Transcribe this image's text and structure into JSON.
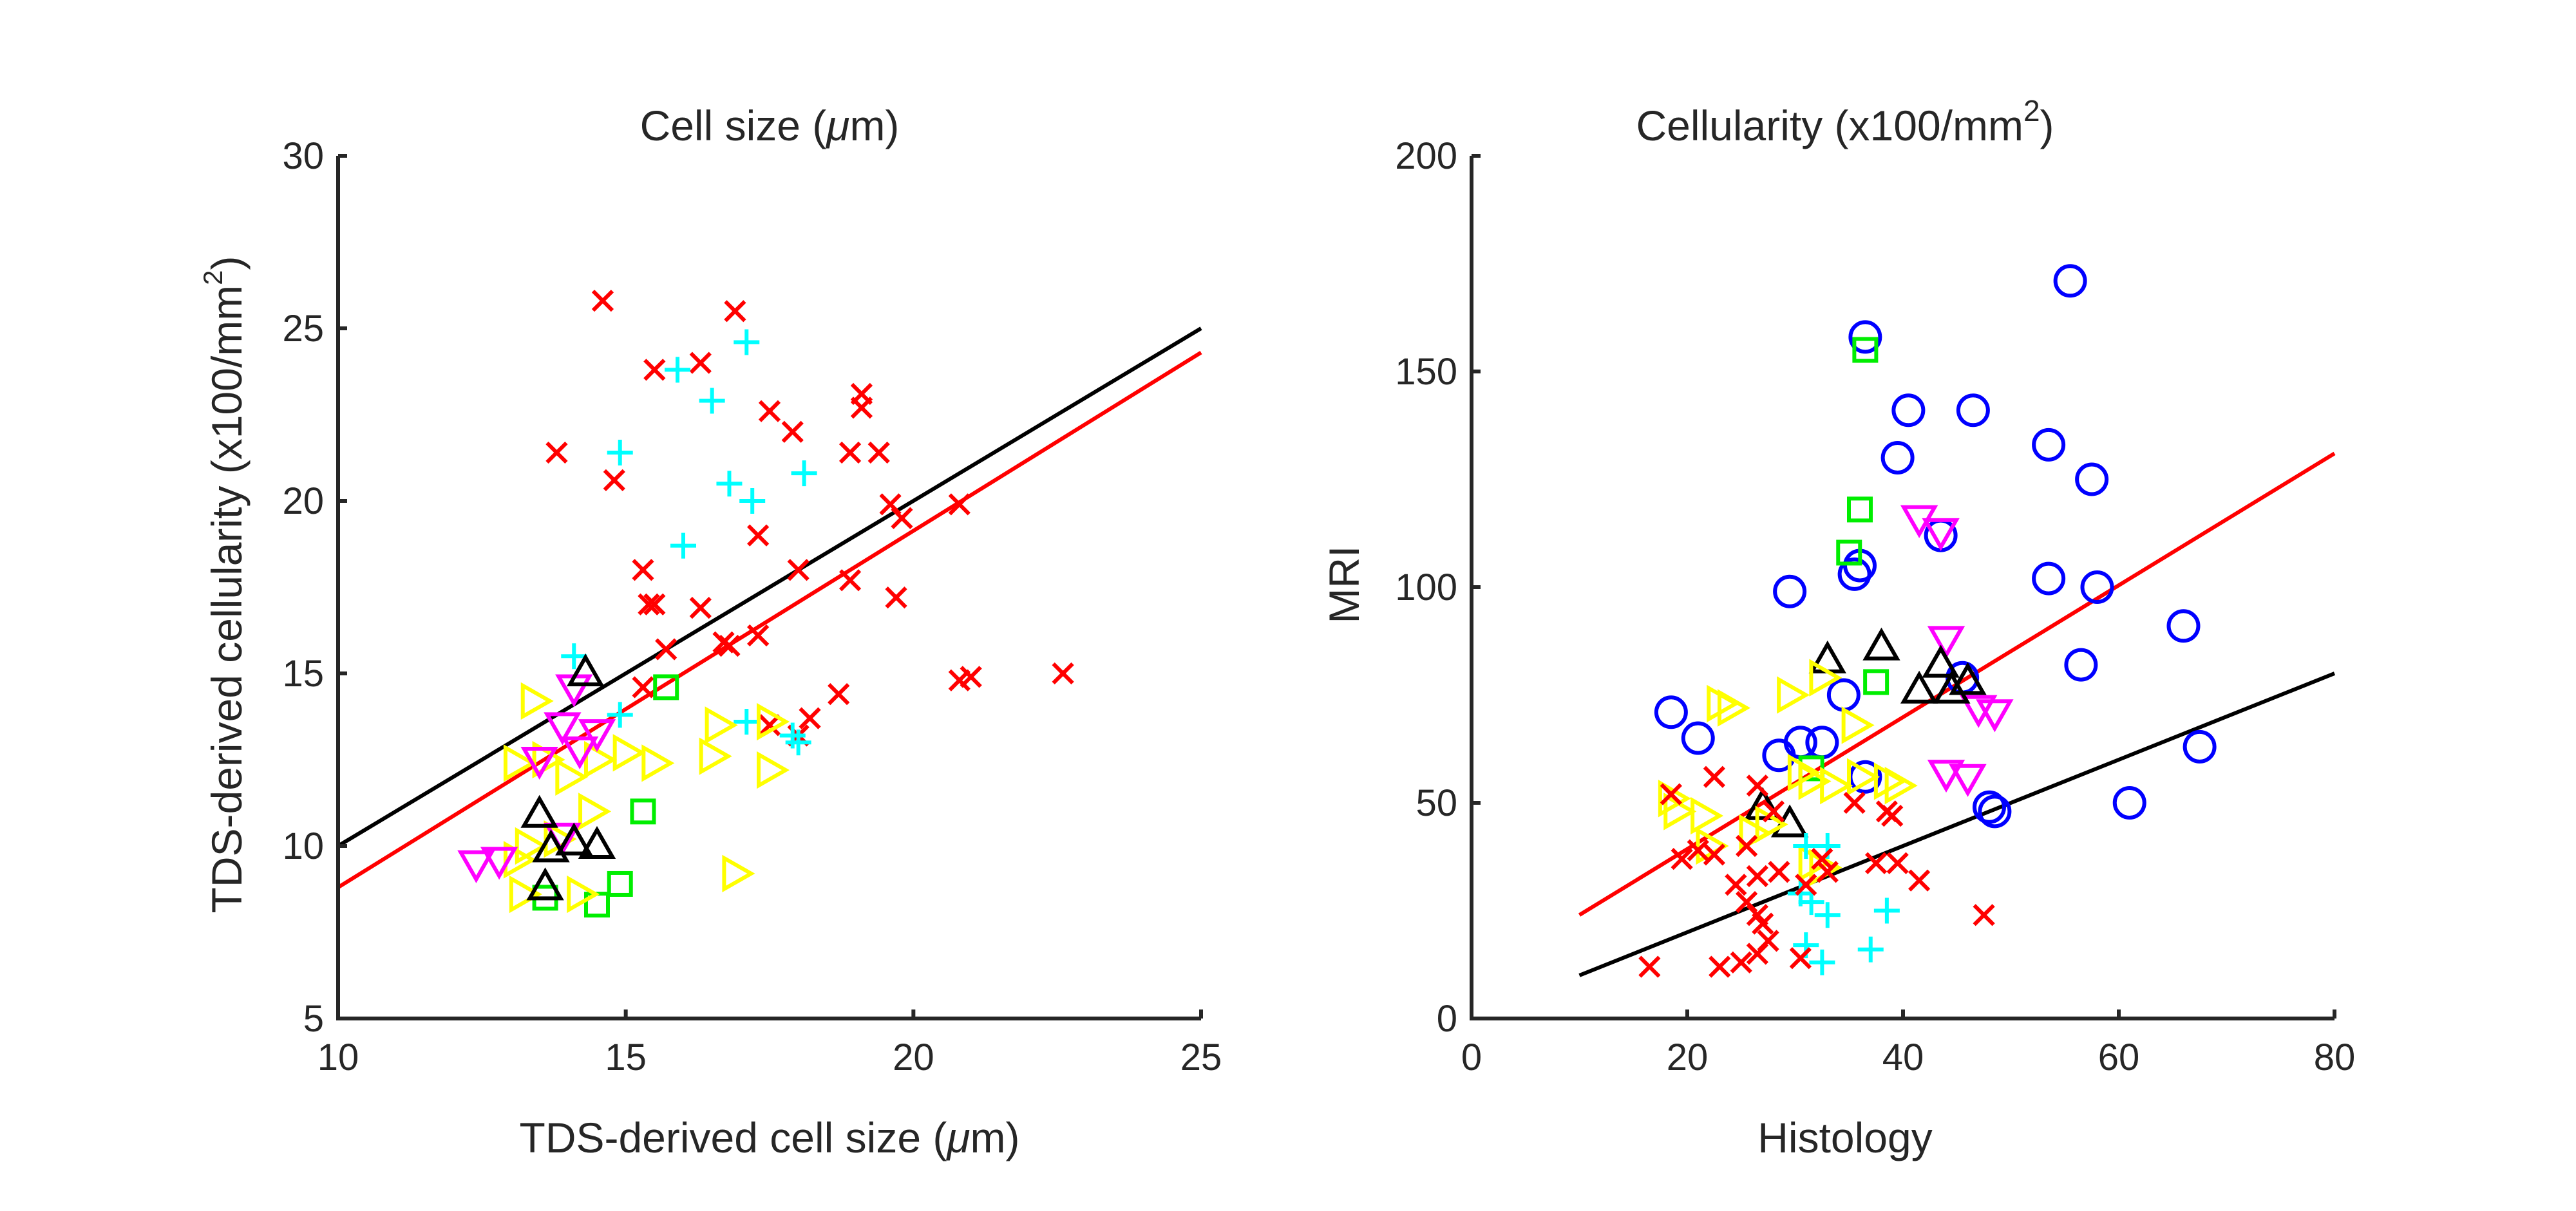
{
  "colors": {
    "red": "#ff0000",
    "cyan": "#00ffff",
    "green": "#00ee00",
    "yellow": "#ffff00",
    "magenta": "#ff00ff",
    "black": "#000000",
    "blue": "#0000ff",
    "fit_black": "#000000",
    "fit_red": "#ff0000"
  },
  "chart_data": [
    {
      "type": "scatter",
      "title": "Cell size (μm)",
      "xlabel": "TDS-derived cell size (μm)",
      "ylabel": "TDS-derived cellularity (x100/mm²)",
      "xlim": [
        10,
        25
      ],
      "ylim": [
        5,
        30
      ],
      "xticks": [
        "10",
        "15",
        "20",
        "25"
      ],
      "yticks": [
        "5",
        "10",
        "15",
        "20",
        "25",
        "30"
      ],
      "series": [
        {
          "name": "red-x",
          "marker": "x",
          "color": "red",
          "points": [
            [
              14.6,
              25.8
            ],
            [
              16.9,
              25.5
            ],
            [
              15.5,
              23.8
            ],
            [
              16.3,
              24.0
            ],
            [
              13.8,
              21.4
            ],
            [
              14.8,
              20.6
            ],
            [
              17.5,
              22.6
            ],
            [
              17.9,
              22.0
            ],
            [
              19.1,
              23.1
            ],
            [
              19.1,
              22.7
            ],
            [
              18.9,
              21.4
            ],
            [
              19.4,
              21.4
            ],
            [
              19.6,
              19.9
            ],
            [
              19.8,
              19.5
            ],
            [
              20.8,
              19.9
            ],
            [
              17.3,
              19.0
            ],
            [
              15.3,
              18.0
            ],
            [
              15.4,
              17.0
            ],
            [
              15.5,
              17.0
            ],
            [
              16.3,
              16.9
            ],
            [
              18.0,
              18.0
            ],
            [
              18.9,
              17.7
            ],
            [
              19.7,
              17.2
            ],
            [
              17.3,
              16.1
            ],
            [
              16.8,
              15.8
            ],
            [
              15.7,
              15.7
            ],
            [
              15.3,
              14.6
            ],
            [
              18.7,
              14.4
            ],
            [
              18.2,
              13.7
            ],
            [
              20.8,
              14.8
            ],
            [
              21.0,
              14.9
            ],
            [
              22.6,
              15.0
            ],
            [
              17.5,
              13.5
            ],
            [
              18.0,
              13.2
            ],
            [
              16.7,
              15.9
            ]
          ]
        },
        {
          "name": "cyan-plus",
          "marker": "plus",
          "color": "cyan",
          "points": [
            [
              15.9,
              23.8
            ],
            [
              17.1,
              24.6
            ],
            [
              16.5,
              22.9
            ],
            [
              14.9,
              21.4
            ],
            [
              16.8,
              20.5
            ],
            [
              17.2,
              20.0
            ],
            [
              18.1,
              20.8
            ],
            [
              16.0,
              18.7
            ],
            [
              14.1,
              15.5
            ],
            [
              14.9,
              13.8
            ],
            [
              17.1,
              13.6
            ],
            [
              18.0,
              13.0
            ],
            [
              17.9,
              13.2
            ]
          ]
        },
        {
          "name": "green-square",
          "marker": "square",
          "color": "green",
          "points": [
            [
              15.7,
              14.6
            ],
            [
              15.3,
              11.0
            ],
            [
              14.9,
              8.9
            ],
            [
              14.5,
              8.3
            ],
            [
              13.6,
              8.5
            ]
          ]
        },
        {
          "name": "yellow-triangle-right",
          "marker": "triangle-right",
          "color": "yellow",
          "points": [
            [
              13.4,
              14.2
            ],
            [
              13.1,
              12.4
            ],
            [
              13.6,
              12.5
            ],
            [
              14.5,
              12.5
            ],
            [
              14.0,
              12.0
            ],
            [
              15.0,
              12.7
            ],
            [
              15.5,
              12.4
            ],
            [
              16.5,
              12.6
            ],
            [
              16.6,
              13.5
            ],
            [
              17.5,
              13.6
            ],
            [
              17.5,
              12.2
            ],
            [
              14.4,
              11.0
            ],
            [
              13.3,
              10.0
            ],
            [
              13.8,
              10.2
            ],
            [
              13.1,
              9.6
            ],
            [
              13.2,
              8.6
            ],
            [
              14.2,
              8.6
            ],
            [
              16.9,
              9.2
            ]
          ]
        },
        {
          "name": "magenta-triangle-down",
          "marker": "triangle-down",
          "color": "magenta",
          "points": [
            [
              12.4,
              9.5
            ],
            [
              12.8,
              9.6
            ],
            [
              13.5,
              12.5
            ],
            [
              14.2,
              12.8
            ],
            [
              14.5,
              13.3
            ],
            [
              13.9,
              13.5
            ],
            [
              14.1,
              14.6
            ],
            [
              13.9,
              10.3
            ]
          ]
        },
        {
          "name": "black-triangle-up",
          "marker": "triangle-up",
          "color": "black",
          "points": [
            [
              14.3,
              15.0
            ],
            [
              13.5,
              10.9
            ],
            [
              13.7,
              9.9
            ],
            [
              14.1,
              10.1
            ],
            [
              14.5,
              10.0
            ],
            [
              13.6,
              8.8
            ]
          ]
        }
      ],
      "fit_lines": [
        {
          "name": "black-fit",
          "color": "fit_black",
          "x": [
            10,
            25
          ],
          "y": [
            10.0,
            25.0
          ]
        },
        {
          "name": "red-fit",
          "color": "fit_red",
          "x": [
            10,
            25
          ],
          "y": [
            8.8,
            24.3
          ]
        }
      ]
    },
    {
      "type": "scatter",
      "title": "Cellularity (x100/mm²)",
      "xlabel": "Histology",
      "ylabel": "MRI",
      "xlim": [
        0,
        80
      ],
      "ylim": [
        0,
        200
      ],
      "xticks": [
        "0",
        "20",
        "40",
        "60",
        "80"
      ],
      "yticks": [
        "0",
        "50",
        "100",
        "150",
        "200"
      ],
      "series": [
        {
          "name": "blue-circle",
          "marker": "circle",
          "color": "blue",
          "points": [
            [
              55.5,
              171
            ],
            [
              36.5,
              158
            ],
            [
              40.5,
              141
            ],
            [
              46.5,
              141
            ],
            [
              39.5,
              130
            ],
            [
              53.5,
              133
            ],
            [
              57.5,
              125
            ],
            [
              43.5,
              112
            ],
            [
              29.5,
              99
            ],
            [
              35.5,
              103
            ],
            [
              36.0,
              105
            ],
            [
              53.5,
              102
            ],
            [
              58.0,
              100
            ],
            [
              66.0,
              91
            ],
            [
              56.5,
              82
            ],
            [
              45.5,
              79
            ],
            [
              34.5,
              75
            ],
            [
              18.5,
              71
            ],
            [
              30.5,
              64
            ],
            [
              32.5,
              64
            ],
            [
              28.5,
              61
            ],
            [
              36.5,
              56
            ],
            [
              21.0,
              65
            ],
            [
              48.0,
              49
            ],
            [
              48.5,
              48
            ],
            [
              61.0,
              50
            ],
            [
              67.5,
              63
            ]
          ]
        },
        {
          "name": "green-square",
          "marker": "square",
          "color": "green",
          "points": [
            [
              36.5,
              155
            ],
            [
              36.0,
              118
            ],
            [
              35.0,
              108
            ],
            [
              37.5,
              78
            ],
            [
              31.5,
              58
            ]
          ]
        },
        {
          "name": "magenta-triangle-down",
          "marker": "triangle-down",
          "color": "magenta",
          "points": [
            [
              41.5,
              116
            ],
            [
              43.5,
              113
            ],
            [
              44.0,
              88
            ],
            [
              47.0,
              72
            ],
            [
              48.5,
              71
            ],
            [
              44.0,
              57
            ],
            [
              46.0,
              56
            ]
          ]
        },
        {
          "name": "black-triangle-up",
          "marker": "triangle-up",
          "color": "black",
          "points": [
            [
              33.0,
              83
            ],
            [
              38.0,
              86
            ],
            [
              43.5,
              82
            ],
            [
              41.5,
              76
            ],
            [
              44.5,
              76
            ],
            [
              46.0,
              78
            ],
            [
              27.0,
              49
            ],
            [
              29.5,
              45
            ]
          ]
        },
        {
          "name": "yellow-triangle-right",
          "marker": "triangle-right",
          "color": "yellow",
          "points": [
            [
              23.0,
              73
            ],
            [
              24.0,
              72
            ],
            [
              29.5,
              75
            ],
            [
              32.5,
              79
            ],
            [
              35.5,
              68
            ],
            [
              30.5,
              57
            ],
            [
              31.5,
              55
            ],
            [
              33.5,
              54
            ],
            [
              36.0,
              56
            ],
            [
              38.5,
              55
            ],
            [
              39.5,
              54
            ],
            [
              18.5,
              51
            ],
            [
              19.0,
              48
            ],
            [
              21.5,
              47
            ],
            [
              27.5,
              45
            ],
            [
              22.0,
              40
            ],
            [
              26.0,
              43
            ],
            [
              31.5,
              36
            ],
            [
              32.5,
              35
            ]
          ]
        },
        {
          "name": "cyan-plus",
          "marker": "plus",
          "color": "cyan",
          "points": [
            [
              31.0,
              40
            ],
            [
              33.0,
              40
            ],
            [
              30.5,
              29
            ],
            [
              31.5,
              27
            ],
            [
              33.0,
              24
            ],
            [
              38.5,
              25
            ],
            [
              31.0,
              17
            ],
            [
              32.5,
              13
            ],
            [
              37.0,
              16
            ]
          ]
        },
        {
          "name": "red-x",
          "marker": "x",
          "color": "red",
          "points": [
            [
              18.5,
              52
            ],
            [
              22.5,
              56
            ],
            [
              26.5,
              54
            ],
            [
              21.0,
              39
            ],
            [
              22.5,
              38
            ],
            [
              25.5,
              40
            ],
            [
              28.0,
              48
            ],
            [
              35.5,
              50
            ],
            [
              38.5,
              48
            ],
            [
              39.0,
              47
            ],
            [
              24.5,
              31
            ],
            [
              26.5,
              33
            ],
            [
              28.5,
              34
            ],
            [
              31.0,
              31
            ],
            [
              32.5,
              37
            ],
            [
              33.0,
              34
            ],
            [
              37.5,
              36
            ],
            [
              39.5,
              36
            ],
            [
              41.5,
              32
            ],
            [
              25.5,
              27
            ],
            [
              26.5,
              24
            ],
            [
              27.0,
              22
            ],
            [
              27.5,
              18
            ],
            [
              26.5,
              15
            ],
            [
              25.0,
              13
            ],
            [
              23.0,
              12
            ],
            [
              30.5,
              14
            ],
            [
              16.5,
              12
            ],
            [
              47.5,
              24
            ],
            [
              19.5,
              37
            ]
          ]
        }
      ],
      "fit_lines": [
        {
          "name": "red-fit",
          "color": "fit_red",
          "x": [
            10,
            80
          ],
          "y": [
            24,
            131
          ]
        },
        {
          "name": "black-fit",
          "color": "fit_black",
          "x": [
            10,
            80
          ],
          "y": [
            10,
            80
          ]
        }
      ]
    }
  ]
}
